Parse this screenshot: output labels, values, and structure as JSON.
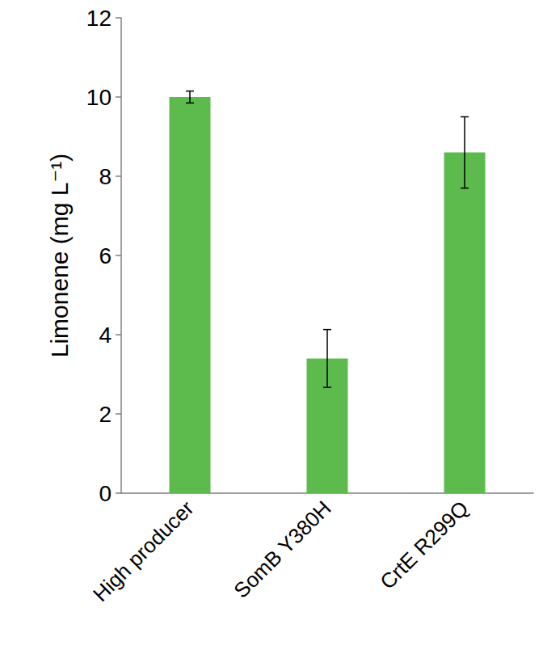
{
  "chart_data": {
    "type": "bar",
    "y_label": "Limonene (mg L⁻¹)",
    "categories": [
      "High producer",
      "SomB Y380H",
      "CrtE R299Q"
    ],
    "values": [
      10.0,
      3.4,
      8.6
    ],
    "errors": [
      0.15,
      0.73,
      0.9
    ],
    "color": "#5dba4c",
    "ylim": [
      0,
      12
    ],
    "yticks": [
      0,
      2,
      4,
      6,
      8,
      10,
      12
    ],
    "grid": false
  }
}
